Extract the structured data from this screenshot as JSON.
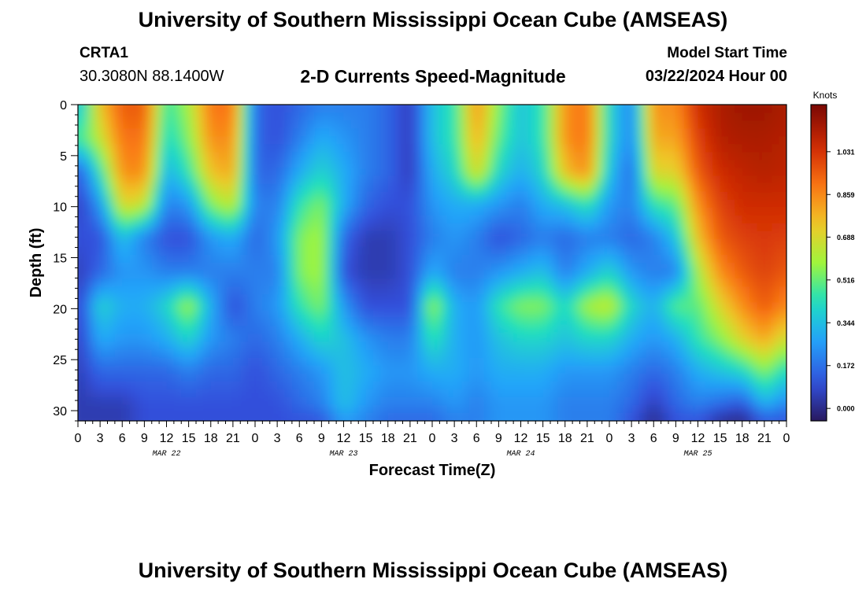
{
  "header": {
    "title": "University of Southern Mississippi Ocean Cube (AMSEAS)",
    "station": "CRTA1",
    "coords": "30.3080N  88.1400W",
    "chart_title": "2-D Currents Speed-Magnitude",
    "model_start_label": "Model Start Time",
    "model_start_value": "03/22/2024 Hour 00"
  },
  "footer": {
    "title": "University of Southern Mississippi Ocean Cube (AMSEAS)"
  },
  "chart_data": {
    "type": "heatmap",
    "title": "2-D Currents Speed-Magnitude",
    "xlabel": "Forecast Time(Z)",
    "ylabel": "Depth (ft)",
    "x_tick_labels": [
      "0",
      "3",
      "6",
      "9",
      "12",
      "15",
      "18",
      "21",
      "0",
      "3",
      "6",
      "9",
      "12",
      "15",
      "18",
      "21",
      "0",
      "3",
      "6",
      "9",
      "12",
      "15",
      "18",
      "21",
      "0",
      "3",
      "6",
      "9",
      "12",
      "15",
      "18",
      "21",
      "0"
    ],
    "day_labels": [
      "MAR 22",
      "MAR 23",
      "MAR 24",
      "MAR 25"
    ],
    "xlim_hours": [
      0,
      96
    ],
    "y_ticks": [
      0,
      5,
      10,
      15,
      20,
      25,
      30
    ],
    "ylim": [
      0,
      31
    ],
    "y_inverted": true,
    "colorbar": {
      "label": "Knots",
      "ticks": [
        "1.031",
        "0.859",
        "0.688",
        "0.516",
        "0.344",
        "0.172",
        "0.000"
      ],
      "range": [
        -0.05,
        1.22
      ]
    },
    "depth_levels_ft": [
      0,
      3.3,
      6.6,
      9.8,
      13.1,
      16.4,
      19.7,
      23,
      26.2,
      29.5,
      31
    ],
    "hours": [
      0,
      3,
      6,
      9,
      12,
      15,
      18,
      21,
      24,
      27,
      30,
      33,
      36,
      39,
      42,
      45,
      48,
      51,
      54,
      57,
      60,
      63,
      66,
      69,
      72,
      75,
      78,
      81,
      84,
      87,
      90,
      93,
      96
    ],
    "values_knots": [
      [
        0.3,
        0.45,
        0.1,
        0.05,
        0.1,
        0.05,
        0.05,
        0.05,
        0.05,
        0.05,
        0.05
      ],
      [
        0.75,
        0.65,
        0.45,
        0.25,
        0.1,
        0.15,
        0.4,
        0.3,
        0.15,
        0.05,
        0.05
      ],
      [
        0.95,
        0.9,
        0.85,
        0.7,
        0.35,
        0.25,
        0.3,
        0.25,
        0.15,
        0.05,
        0.05
      ],
      [
        0.95,
        0.9,
        0.85,
        0.65,
        0.2,
        0.25,
        0.3,
        0.25,
        0.15,
        0.1,
        0.1
      ],
      [
        0.45,
        0.4,
        0.3,
        0.2,
        0.1,
        0.2,
        0.4,
        0.3,
        0.15,
        0.1,
        0.1
      ],
      [
        0.6,
        0.55,
        0.45,
        0.25,
        0.1,
        0.2,
        0.6,
        0.4,
        0.2,
        0.1,
        0.1
      ],
      [
        0.9,
        0.85,
        0.75,
        0.55,
        0.25,
        0.2,
        0.3,
        0.25,
        0.15,
        0.1,
        0.1
      ],
      [
        0.9,
        0.85,
        0.8,
        0.65,
        0.3,
        0.2,
        0.1,
        0.2,
        0.15,
        0.1,
        0.1
      ],
      [
        0.15,
        0.15,
        0.15,
        0.2,
        0.15,
        0.2,
        0.2,
        0.15,
        0.1,
        0.1,
        0.1
      ],
      [
        0.1,
        0.1,
        0.15,
        0.2,
        0.25,
        0.2,
        0.25,
        0.2,
        0.15,
        0.1,
        0.1
      ],
      [
        0.15,
        0.2,
        0.3,
        0.45,
        0.55,
        0.55,
        0.45,
        0.3,
        0.2,
        0.15,
        0.1
      ],
      [
        0.2,
        0.3,
        0.4,
        0.55,
        0.6,
        0.6,
        0.55,
        0.4,
        0.25,
        0.2,
        0.1
      ],
      [
        0.2,
        0.25,
        0.3,
        0.3,
        0.15,
        0.1,
        0.25,
        0.35,
        0.35,
        0.35,
        0.25
      ],
      [
        0.2,
        0.2,
        0.2,
        0.15,
        0.05,
        0.05,
        0.1,
        0.25,
        0.3,
        0.25,
        0.2
      ],
      [
        0.15,
        0.15,
        0.15,
        0.1,
        0.05,
        0.05,
        0.1,
        0.2,
        0.25,
        0.2,
        0.15
      ],
      [
        0.05,
        0.05,
        0.05,
        0.1,
        0.1,
        0.1,
        0.1,
        0.2,
        0.25,
        0.2,
        0.15
      ],
      [
        0.35,
        0.35,
        0.3,
        0.25,
        0.2,
        0.3,
        0.6,
        0.45,
        0.3,
        0.2,
        0.15
      ],
      [
        0.45,
        0.45,
        0.4,
        0.3,
        0.25,
        0.2,
        0.3,
        0.3,
        0.3,
        0.25,
        0.2
      ],
      [
        0.85,
        0.8,
        0.7,
        0.3,
        0.2,
        0.2,
        0.25,
        0.25,
        0.25,
        0.2,
        0.2
      ],
      [
        0.55,
        0.5,
        0.4,
        0.25,
        0.1,
        0.25,
        0.45,
        0.35,
        0.3,
        0.25,
        0.25
      ],
      [
        0.35,
        0.35,
        0.3,
        0.2,
        0.15,
        0.3,
        0.55,
        0.4,
        0.3,
        0.25,
        0.25
      ],
      [
        0.45,
        0.45,
        0.4,
        0.3,
        0.2,
        0.35,
        0.55,
        0.4,
        0.3,
        0.25,
        0.25
      ],
      [
        0.85,
        0.85,
        0.75,
        0.35,
        0.15,
        0.2,
        0.4,
        0.35,
        0.25,
        0.2,
        0.2
      ],
      [
        0.9,
        0.9,
        0.85,
        0.45,
        0.2,
        0.3,
        0.6,
        0.4,
        0.25,
        0.2,
        0.2
      ],
      [
        0.4,
        0.4,
        0.35,
        0.25,
        0.2,
        0.4,
        0.65,
        0.4,
        0.25,
        0.2,
        0.2
      ],
      [
        0.2,
        0.2,
        0.15,
        0.2,
        0.15,
        0.25,
        0.4,
        0.3,
        0.2,
        0.15,
        0.1
      ],
      [
        0.85,
        0.8,
        0.7,
        0.45,
        0.2,
        0.2,
        0.3,
        0.25,
        0.15,
        0.05,
        0.0
      ],
      [
        0.85,
        0.8,
        0.7,
        0.5,
        0.35,
        0.2,
        0.5,
        0.3,
        0.2,
        0.15,
        0.1
      ],
      [
        1.05,
        1.0,
        0.95,
        0.85,
        0.75,
        0.6,
        0.5,
        0.45,
        0.3,
        0.2,
        0.1
      ],
      [
        1.12,
        1.1,
        1.05,
        1.0,
        0.95,
        0.85,
        0.7,
        0.55,
        0.35,
        0.15,
        0.0
      ],
      [
        1.15,
        1.12,
        1.08,
        1.05,
        1.0,
        0.95,
        0.85,
        0.7,
        0.4,
        0.1,
        -0.02
      ],
      [
        1.15,
        1.12,
        1.1,
        1.05,
        1.02,
        1.0,
        0.95,
        0.8,
        0.55,
        0.3,
        0.1
      ],
      [
        1.12,
        1.1,
        1.08,
        1.05,
        1.0,
        0.95,
        0.85,
        0.65,
        0.4,
        0.2,
        0.1
      ]
    ]
  }
}
